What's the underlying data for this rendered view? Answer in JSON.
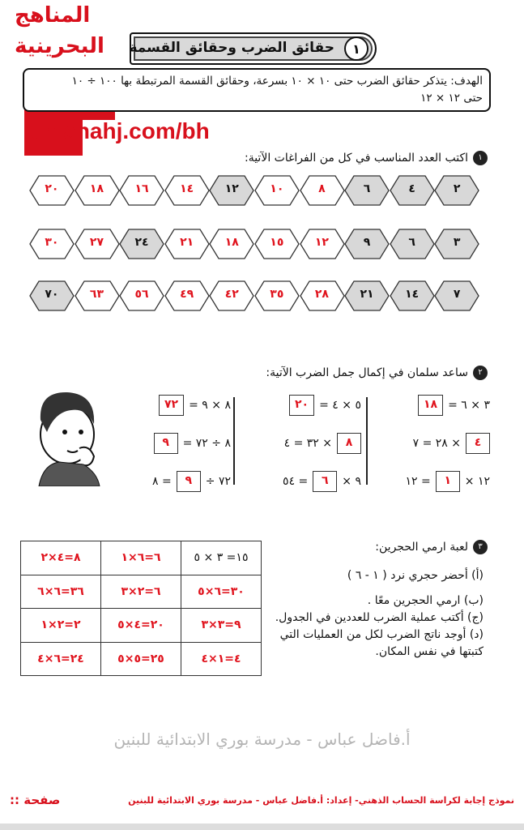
{
  "header": {
    "lesson_number": "١",
    "title": "حقائق الضرب وحقائق القسمة",
    "goal_line1": "الهدف: يتذكر حقائق الضرب حتى ١٠ × ١٠ بسرعة، وحقائق القسمة المرتبطة بها ١٠٠ ÷ ١٠",
    "goal_line2": "حتى ١٢ × ١٢"
  },
  "watermark_logo": {
    "line1": "المناهج",
    "line2": "البحرينية",
    "url": "almanahj.com/bh",
    "color": "#d8101c"
  },
  "section1": {
    "number": "١",
    "instruction": "اكتب العدد المناسب في كل من الفراغات الآتية:",
    "rows": [
      [
        {
          "v": "٢",
          "given": true
        },
        {
          "v": "٤",
          "given": true
        },
        {
          "v": "٦",
          "given": true
        },
        {
          "v": "٨"
        },
        {
          "v": "١٠"
        },
        {
          "v": "١٢",
          "given": true
        },
        {
          "v": "١٤"
        },
        {
          "v": "١٦"
        },
        {
          "v": "١٨"
        },
        {
          "v": "٢٠"
        }
      ],
      [
        {
          "v": "٣",
          "given": true
        },
        {
          "v": "٦",
          "given": true
        },
        {
          "v": "٩",
          "given": true
        },
        {
          "v": "١٢"
        },
        {
          "v": "١٥"
        },
        {
          "v": "١٨"
        },
        {
          "v": "٢١"
        },
        {
          "v": "٢٤",
          "given": true
        },
        {
          "v": "٢٧"
        },
        {
          "v": "٣٠"
        }
      ],
      [
        {
          "v": "٧",
          "given": true
        },
        {
          "v": "١٤",
          "given": true
        },
        {
          "v": "٢١",
          "given": true
        },
        {
          "v": "٢٨"
        },
        {
          "v": "٣٥"
        },
        {
          "v": "٤٢"
        },
        {
          "v": "٤٩"
        },
        {
          "v": "٥٦"
        },
        {
          "v": "٦٣"
        },
        {
          "v": "٧٠",
          "given": true
        }
      ]
    ]
  },
  "section2": {
    "number": "٢",
    "instruction": "ساعد سلمان في إكمال جمل الضرب الآتية:",
    "columns": [
      [
        [
          {
            "b": "١٨"
          },
          {
            "t": "= ٣ × ٦"
          }
        ],
        [
          {
            "t": "٢٨ = ٧ ×"
          },
          {
            "b": "٤"
          }
        ],
        [
          {
            "t": "١٢ ="
          },
          {
            "b": "١"
          },
          {
            "t": "× ١٢"
          }
        ]
      ],
      [
        [
          {
            "b": "٢٠"
          },
          {
            "t": "= ٥ × ٤"
          }
        ],
        [
          {
            "t": "٣٢ = ٤ ×"
          },
          {
            "b": "٨"
          }
        ],
        [
          {
            "t": "٥٤ ="
          },
          {
            "b": "٦"
          },
          {
            "t": "× ٩"
          }
        ]
      ],
      [
        [
          {
            "b": "٧٢"
          },
          {
            "t": "= ٨ × ٩"
          }
        ],
        [
          {
            "b": "٩"
          },
          {
            "t": "= ٨ ÷ ٧٢"
          }
        ],
        [
          {
            "t": "٨ ="
          },
          {
            "b": "٩"
          },
          {
            "t": "÷ ٧٢"
          }
        ]
      ]
    ]
  },
  "section3": {
    "number": "٣",
    "title": "لعبة ارمي الحجرين:",
    "steps": [
      "(أ) أحضر حجري نرد ( ١ - ٦ )",
      "(ب) ارمي الحجرين معًا .",
      "(ج) أكتب عملية الضرب للعددين في الجدول.",
      "(د) أوجد ناتج الضرب لكل من العمليات التي كتبتها في نفس المكان."
    ],
    "table": [
      [
        "٨=٤×٢",
        "٦=٦×١",
        "١٥= ٣ × ٥"
      ],
      [
        "٣٦=٦×٦",
        "٦=٢×٣",
        "٣٠=٦×٥"
      ],
      [
        "٢=٢×١",
        "٢٠=٤×٥",
        "٩=٣×٣"
      ],
      [
        "٢٤=٦×٤",
        "٢٥=٥×٥",
        "٤=١×٤"
      ]
    ]
  },
  "diagonal_watermark": "أ.فاضل عباس - مدرسة بوري الابتدائية للبنين",
  "footer": {
    "credit": "نموذج إجابة لكراسة الحساب الذهني- إعداد: أ.فاضل عباس - مدرسة بوري الابتدائية للبنين",
    "page_label": "صفحة ::"
  }
}
